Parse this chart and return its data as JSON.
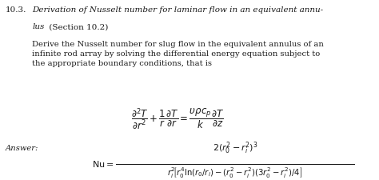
{
  "background_color": "#ffffff",
  "figsize": [
    4.74,
    2.26
  ],
  "dpi": 100,
  "fs_title": 7.5,
  "fs_body": 7.2,
  "fs_math": 8.5,
  "fs_answer": 7.2,
  "text_color": "#1a1a1a",
  "title_number": "10.3.",
  "title_italic": "Derivation of Nusselt number for laminar flow in an equivalent annu-",
  "title_italic2": "lus",
  "title_normal": " (Section 10.2)",
  "body": "Derive the Nusselt number for slug flow in the equivalent annulus of an\ninfinite rod array by solving the differential energy equation subject to\nthe appropriate boundary conditions, that is",
  "answer": "Answer:",
  "eq1": "$\\dfrac{\\partial^2 T}{\\partial r^2} + \\dfrac{1}{r}\\dfrac{\\partial T}{\\partial r} = \\dfrac{\\upsilon\\rho c_p}{k}\\dfrac{\\partial T}{\\partial z}$",
  "nu_eq": "$\\mathrm{Nu} =$",
  "num": "$2(r_0^2 - r_i^2)^3$",
  "den": "$r_i^2\\!\\left[r_0^4\\ln(r_0/r_i) - (r_0^2 - r_i^2)(3r_0^2 - r_i^2)/4\\right]$"
}
